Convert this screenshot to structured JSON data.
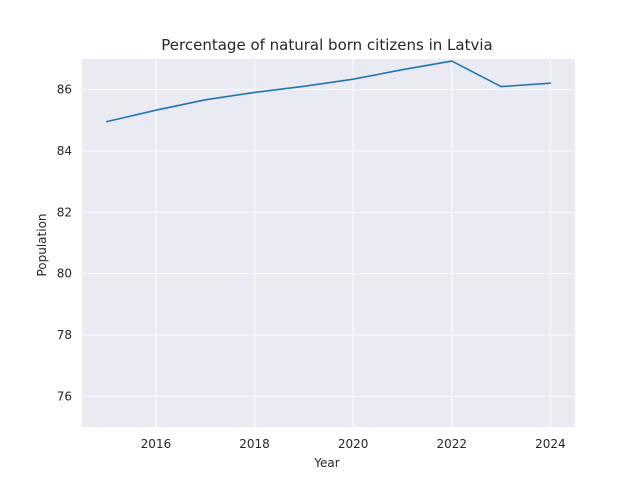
{
  "chart_data": {
    "type": "line",
    "title": "Percentage of natural born citizens in Latvia",
    "xlabel": "Year",
    "ylabel": "Population",
    "x": [
      2015,
      2016,
      2017,
      2018,
      2019,
      2020,
      2021,
      2022,
      2023,
      2024
    ],
    "series": [
      {
        "values": [
          84.96,
          85.33,
          85.67,
          85.91,
          86.11,
          86.34,
          86.65,
          86.93,
          86.1,
          86.21
        ]
      }
    ],
    "xlim": [
      2014.5,
      2024.5
    ],
    "ylim": [
      75.0,
      87.0
    ],
    "xticks": [
      2016,
      2018,
      2020,
      2022,
      2024
    ],
    "yticks": [
      76,
      78,
      80,
      82,
      84,
      86
    ],
    "grid": true,
    "line_color": "#1f77b4",
    "background_color": "#eaeaf2"
  }
}
